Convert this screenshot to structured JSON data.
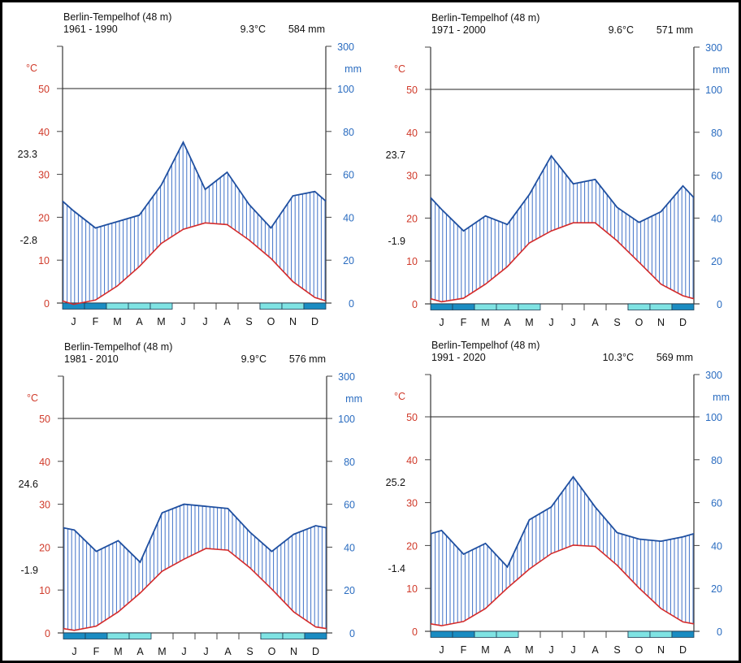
{
  "colors": {
    "temperature": "#d42a2a",
    "precipitation": "#1f4fa0",
    "hatch": "#3f72c8",
    "frost_dark": "#1a8cc2",
    "frost_light": "#7fe3e3",
    "axis": "#444444",
    "left_labels": "#d03a2a",
    "right_labels": "#2a6cc0"
  },
  "chart_data": [
    {
      "type": "climate-diagram",
      "title": "Berlin-Tempelhof (48 m)",
      "period": "1961 - 1990",
      "mean_temp_label": "9.3°C",
      "annual_precip_label": "584 mm",
      "max_label": "23.3",
      "min_label": "-2.8",
      "left_unit": "°C",
      "right_unit": "mm",
      "categories": [
        "J",
        "F",
        "M",
        "A",
        "M",
        "J",
        "J",
        "A",
        "S",
        "O",
        "N",
        "D"
      ],
      "left_ticks": [
        "0",
        "10",
        "20",
        "30",
        "40",
        "50"
      ],
      "right_ticks": [
        "0",
        "20",
        "40",
        "60",
        "80",
        "100",
        "300"
      ],
      "temperature_c": [
        -0.3,
        0.7,
        4.0,
        8.5,
        13.9,
        17.2,
        18.7,
        18.3,
        14.7,
        10.4,
        5.0,
        1.3
      ],
      "precipitation_mm": [
        43,
        35,
        38,
        41,
        55,
        75,
        53,
        61,
        46,
        35,
        50,
        52
      ],
      "frost": [
        "dark",
        "dark",
        "light",
        "light",
        "light",
        "none",
        "none",
        "none",
        "none",
        "light",
        "light",
        "dark"
      ],
      "ylim_c": [
        0,
        50
      ],
      "ylim_mm": [
        0,
        300
      ]
    },
    {
      "type": "climate-diagram",
      "title": "Berlin-Tempelhof (48 m)",
      "period": "1971 - 2000",
      "mean_temp_label": "9.6°C",
      "annual_precip_label": "571 mm",
      "max_label": "23.7",
      "min_label": "-1.9",
      "left_unit": "°C",
      "right_unit": "mm",
      "categories": [
        "J",
        "F",
        "M",
        "A",
        "M",
        "J",
        "J",
        "A",
        "S",
        "O",
        "N",
        "D"
      ],
      "left_ticks": [
        "0",
        "10",
        "20",
        "30",
        "40",
        "50"
      ],
      "right_ticks": [
        "0",
        "20",
        "40",
        "60",
        "80",
        "100",
        "300"
      ],
      "temperature_c": [
        0.5,
        1.3,
        4.6,
        8.7,
        14.2,
        17.0,
        18.9,
        18.9,
        14.7,
        9.7,
        4.6,
        1.9
      ],
      "precipitation_mm": [
        44,
        34,
        41,
        37,
        51,
        69,
        56,
        58,
        45,
        38,
        43,
        55
      ],
      "frost": [
        "dark",
        "dark",
        "light",
        "light",
        "light",
        "none",
        "none",
        "none",
        "none",
        "light",
        "light",
        "dark"
      ],
      "ylim_c": [
        0,
        50
      ],
      "ylim_mm": [
        0,
        300
      ]
    },
    {
      "type": "climate-diagram",
      "title": "Berlin-Tempelhof (48 m)",
      "period": "1981 - 2010",
      "mean_temp_label": "9.9°C",
      "annual_precip_label": "576 mm",
      "max_label": "24.6",
      "min_label": "-1.9",
      "left_unit": "°C",
      "right_unit": "mm",
      "categories": [
        "J",
        "F",
        "M",
        "A",
        "M",
        "J",
        "J",
        "A",
        "S",
        "O",
        "N",
        "D"
      ],
      "left_ticks": [
        "0",
        "10",
        "20",
        "30",
        "40",
        "50"
      ],
      "right_ticks": [
        "0",
        "20",
        "40",
        "60",
        "80",
        "100",
        "300"
      ],
      "temperature_c": [
        0.6,
        1.6,
        4.9,
        9.3,
        14.4,
        17.2,
        19.7,
        19.3,
        15.2,
        10.2,
        4.9,
        1.4
      ],
      "precipitation_mm": [
        48,
        38,
        43,
        33,
        56,
        60,
        59,
        58,
        47,
        38,
        46,
        50
      ],
      "frost": [
        "dark",
        "dark",
        "light",
        "light",
        "none",
        "none",
        "none",
        "none",
        "none",
        "light",
        "light",
        "dark"
      ],
      "ylim_c": [
        0,
        50
      ],
      "ylim_mm": [
        0,
        300
      ]
    },
    {
      "type": "climate-diagram",
      "title": "Berlin-Tempelhof (48 m)",
      "period": "1991 - 2020",
      "mean_temp_label": "10.3°C",
      "annual_precip_label": "569 mm",
      "max_label": "25.2",
      "min_label": "-1.4",
      "left_unit": "°C",
      "right_unit": "mm",
      "categories": [
        "J",
        "F",
        "M",
        "A",
        "M",
        "J",
        "J",
        "A",
        "S",
        "O",
        "N",
        "D"
      ],
      "left_ticks": [
        "0",
        "10",
        "20",
        "30",
        "40",
        "50"
      ],
      "right_ticks": [
        "0",
        "20",
        "40",
        "60",
        "80",
        "100",
        "300"
      ],
      "temperature_c": [
        1.3,
        2.3,
        5.3,
        10.1,
        14.5,
        18.1,
        20.1,
        19.8,
        15.4,
        10.1,
        5.3,
        2.2
      ],
      "precipitation_mm": [
        47,
        36,
        41,
        30,
        52,
        58,
        72,
        58,
        46,
        43,
        42,
        44
      ],
      "frost": [
        "dark",
        "dark",
        "light",
        "light",
        "none",
        "none",
        "none",
        "none",
        "none",
        "light",
        "light",
        "dark"
      ],
      "ylim_c": [
        0,
        50
      ],
      "ylim_mm": [
        0,
        300
      ]
    }
  ]
}
